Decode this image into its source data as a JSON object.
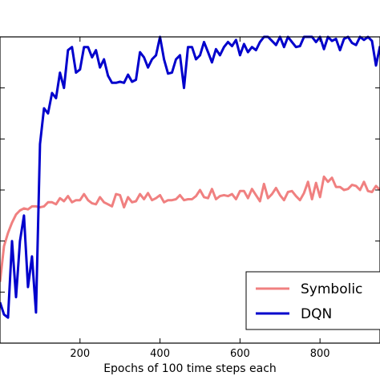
{
  "chart_data": {
    "type": "line",
    "title": "",
    "xlabel": "Epochs of 100 time steps each",
    "ylabel": "",
    "xlim": [
      0,
      950
    ],
    "ylim": [
      0,
      300
    ],
    "x_ticks": [
      200,
      400,
      600,
      800
    ],
    "x_tick_labels": [
      "200",
      "400",
      "600",
      "800"
    ],
    "y_ticks": [
      0,
      50,
      100,
      150,
      200,
      250,
      300
    ],
    "grid": false,
    "legend_position": "lower-right",
    "series": [
      {
        "name": "Symbolic",
        "color": "#f08080",
        "x": [
          0,
          10,
          20,
          30,
          40,
          50,
          60,
          70,
          80,
          90,
          100,
          110,
          120,
          130,
          140,
          150,
          160,
          170,
          180,
          190,
          200,
          210,
          220,
          230,
          240,
          250,
          260,
          270,
          280,
          290,
          300,
          310,
          320,
          330,
          340,
          350,
          360,
          370,
          380,
          390,
          400,
          410,
          420,
          430,
          440,
          450,
          460,
          470,
          480,
          490,
          500,
          510,
          520,
          530,
          540,
          550,
          560,
          570,
          580,
          590,
          600,
          610,
          620,
          630,
          640,
          650,
          660,
          670,
          680,
          690,
          700,
          710,
          720,
          730,
          740,
          750,
          760,
          770,
          780,
          790,
          800,
          810,
          820,
          830,
          840,
          850,
          860,
          870,
          880,
          890,
          900,
          910,
          920,
          930,
          940,
          950
        ],
        "y": [
          60,
          95,
          108,
          118,
          126,
          130,
          132,
          131,
          134,
          134,
          133,
          134,
          138,
          138,
          136,
          142,
          139,
          144,
          138,
          140,
          140,
          146,
          140,
          137,
          136,
          143,
          138,
          136,
          134,
          146,
          145,
          133,
          143,
          138,
          139,
          146,
          141,
          147,
          140,
          142,
          145,
          138,
          140,
          140,
          141,
          145,
          140,
          141,
          141,
          144,
          150,
          143,
          142,
          151,
          141,
          144,
          145,
          144,
          146,
          141,
          149,
          149,
          142,
          151,
          145,
          139,
          156,
          142,
          146,
          152,
          145,
          140,
          148,
          149,
          144,
          140,
          147,
          158,
          141,
          157,
          143,
          163,
          158,
          162,
          153,
          153,
          150,
          151,
          155,
          154,
          150,
          158,
          149,
          148,
          154,
          150
        ]
      },
      {
        "name": "DQN",
        "color": "#0000cc",
        "x": [
          0,
          10,
          20,
          30,
          40,
          50,
          60,
          70,
          80,
          90,
          100,
          110,
          120,
          130,
          140,
          150,
          160,
          170,
          180,
          190,
          200,
          210,
          220,
          230,
          240,
          250,
          260,
          270,
          280,
          290,
          300,
          310,
          320,
          330,
          340,
          350,
          360,
          370,
          380,
          390,
          400,
          410,
          420,
          430,
          440,
          450,
          460,
          470,
          480,
          490,
          500,
          510,
          520,
          530,
          540,
          550,
          560,
          570,
          580,
          590,
          600,
          610,
          620,
          630,
          640,
          650,
          660,
          670,
          680,
          690,
          700,
          710,
          720,
          730,
          740,
          750,
          760,
          770,
          780,
          790,
          800,
          810,
          820,
          830,
          840,
          850,
          860,
          870,
          880,
          890,
          900,
          910,
          920,
          930,
          940,
          950
        ],
        "y": [
          40,
          28,
          25,
          100,
          45,
          100,
          125,
          55,
          85,
          30,
          195,
          230,
          225,
          245,
          240,
          265,
          250,
          287,
          290,
          265,
          268,
          290,
          290,
          280,
          287,
          270,
          278,
          262,
          255,
          255,
          256,
          255,
          263,
          256,
          258,
          285,
          280,
          270,
          278,
          282,
          300,
          278,
          264,
          265,
          278,
          282,
          250,
          290,
          290,
          278,
          282,
          295,
          285,
          275,
          288,
          282,
          290,
          295,
          291,
          297,
          282,
          293,
          285,
          290,
          287,
          295,
          300,
          300,
          296,
          292,
          300,
          290,
          300,
          295,
          290,
          291,
          300,
          300,
          300,
          295,
          300,
          288,
          300,
          296,
          298,
          287,
          298,
          300,
          294,
          292,
          300,
          297,
          300,
          296,
          272,
          291
        ]
      }
    ]
  }
}
